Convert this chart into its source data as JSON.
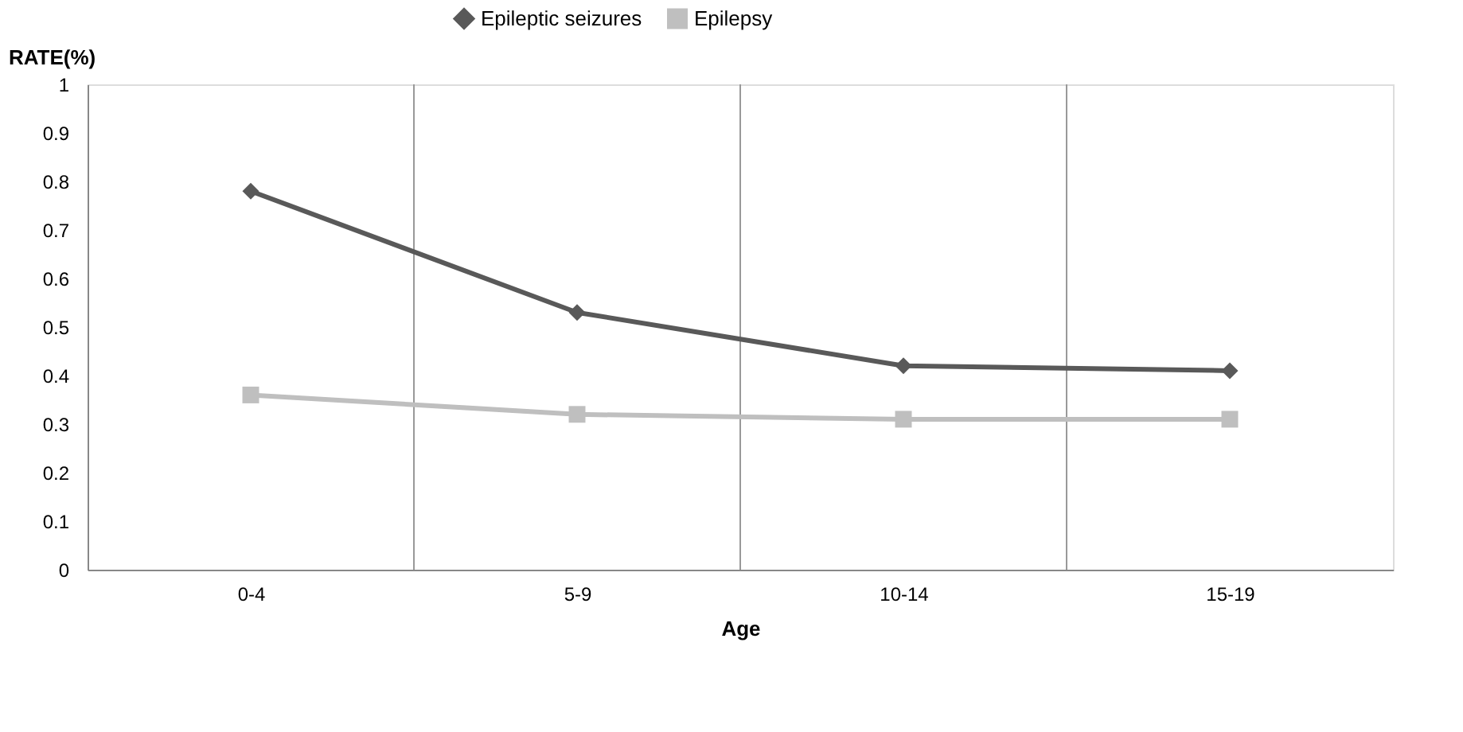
{
  "chart_data": {
    "type": "line",
    "xlabel": "Age",
    "ylabel": "RATE(%)",
    "categories": [
      "0-4",
      "5-9",
      "10-14",
      "15-19"
    ],
    "series": [
      {
        "name": "Epileptic seizures",
        "color": "#595959",
        "marker": "diamond",
        "values": [
          0.78,
          0.53,
          0.42,
          0.41
        ]
      },
      {
        "name": "Epilepsy",
        "color": "#bfbfbf",
        "marker": "square",
        "values": [
          0.36,
          0.32,
          0.31,
          0.31
        ]
      }
    ],
    "ylim": [
      0,
      1
    ],
    "yticks": [
      0,
      0.1,
      0.2,
      0.3,
      0.4,
      0.5,
      0.6,
      0.7,
      0.8,
      0.9,
      1
    ],
    "grid": "x",
    "legend": "top",
    "line_style": "solid"
  }
}
